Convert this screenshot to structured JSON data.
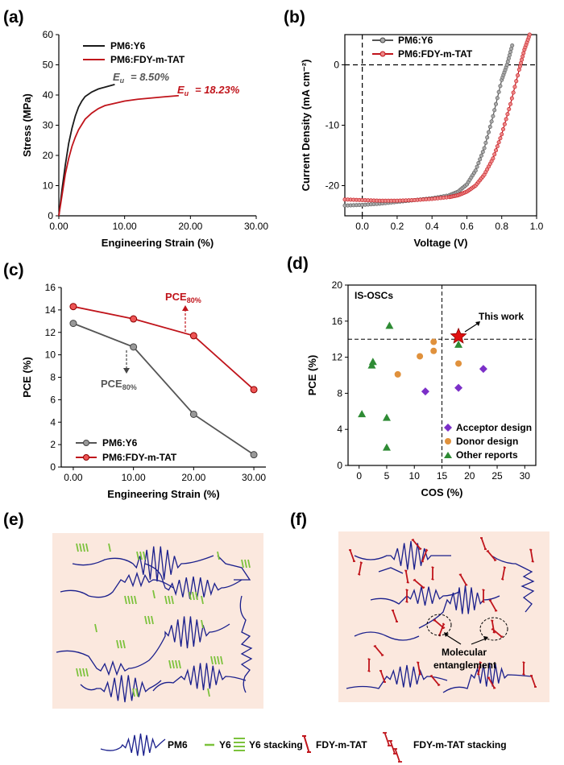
{
  "colors": {
    "black_series": "#1a1a1a",
    "red_series": "#c0141b",
    "gray_series": "#555555",
    "orange": "#e0913c",
    "purple": "#7b2fc8",
    "green": "#2e8b34",
    "chain_blue": "#1a1f8c",
    "y6_green": "#7cc23c",
    "panel_bg": "#fbe8de"
  },
  "chart_data": [
    {
      "panel": "(a)",
      "type": "line",
      "xlabel": "Engineering Strain (%)",
      "ylabel": "Stress (MPa)",
      "xlim": [
        0,
        30
      ],
      "ylim": [
        0,
        60
      ],
      "xticks": [
        "0.00",
        "10.00",
        "20.00",
        "30.00"
      ],
      "yticks": [
        "0",
        "10",
        "20",
        "30",
        "40",
        "50",
        "60"
      ],
      "series": [
        {
          "name": "PM6:Y6",
          "x": [
            0,
            0.5,
            1,
            1.5,
            2,
            2.5,
            3,
            3.5,
            4,
            5,
            6,
            7,
            7.5,
            8.0,
            8.5
          ],
          "y": [
            0,
            9,
            17,
            24,
            29,
            33,
            36,
            38,
            39.5,
            41,
            42,
            42.6,
            42.9,
            43.2,
            43.5
          ]
        },
        {
          "name": "PM6:FDY-m-TAT",
          "x": [
            0,
            0.5,
            1,
            1.5,
            2,
            2.5,
            3,
            4,
            5,
            6,
            7,
            8,
            9,
            10,
            12,
            14,
            16,
            18.23
          ],
          "y": [
            0,
            7,
            14,
            19,
            23,
            26,
            28.5,
            32,
            34,
            35.5,
            36.5,
            37,
            37.5,
            38,
            38.6,
            39,
            39.4,
            39.8
          ]
        }
      ],
      "annotations": [
        {
          "text": "8.50%",
          "prefix": "E",
          "sub": "u"
        },
        {
          "text": "18.23%",
          "prefix": "E",
          "sub": "u"
        }
      ]
    },
    {
      "panel": "(b)",
      "type": "line",
      "xlabel": "Voltage (V)",
      "ylabel": "Current Density (mA cm⁻²)",
      "xlim": [
        -0.1,
        1.0
      ],
      "ylim": [
        -25,
        5
      ],
      "xticks": [
        "0.0",
        "0.2",
        "0.4",
        "0.6",
        "0.8",
        "1.0"
      ],
      "yticks": [
        "-20",
        "-10",
        "0"
      ],
      "series": [
        {
          "name": "PM6:Y6",
          "x": [
            -0.1,
            0,
            0.1,
            0.2,
            0.3,
            0.4,
            0.5,
            0.55,
            0.6,
            0.65,
            0.7,
            0.75,
            0.8,
            0.83,
            0.86
          ],
          "y": [
            -23.3,
            -23.2,
            -23.0,
            -22.7,
            -22.4,
            -22.1,
            -21.6,
            -21.0,
            -19.8,
            -17.5,
            -13.8,
            -8.5,
            -2.5,
            0,
            3.2
          ]
        },
        {
          "name": "PM6:FDY-m-TAT",
          "x": [
            -0.1,
            0,
            0.1,
            0.2,
            0.3,
            0.4,
            0.5,
            0.55,
            0.6,
            0.65,
            0.7,
            0.75,
            0.8,
            0.85,
            0.9,
            0.93,
            0.96
          ],
          "y": [
            -22.3,
            -22.4,
            -22.5,
            -22.5,
            -22.4,
            -22.2,
            -21.9,
            -21.6,
            -21.0,
            -20.0,
            -18.2,
            -15.5,
            -11.5,
            -6.5,
            -0.8,
            2.5,
            5
          ]
        }
      ]
    },
    {
      "panel": "(c)",
      "type": "line",
      "xlabel": "Engineering Strain (%)",
      "ylabel": "PCE (%)",
      "xlim": [
        -2,
        32
      ],
      "ylim": [
        0,
        16
      ],
      "xticks": [
        "0.00",
        "10.00",
        "20.00",
        "30.00"
      ],
      "yticks": [
        "0",
        "2",
        "4",
        "6",
        "8",
        "10",
        "12",
        "14",
        "16"
      ],
      "series": [
        {
          "name": "PM6:Y6",
          "x": [
            0,
            10,
            20,
            30
          ],
          "y": [
            12.8,
            10.7,
            4.7,
            1.1
          ]
        },
        {
          "name": "PM6:FDY-m-TAT",
          "x": [
            0,
            10,
            20,
            30
          ],
          "y": [
            14.3,
            13.2,
            11.7,
            6.9
          ]
        }
      ],
      "annotations": [
        {
          "text": "PCE",
          "sub": "80%"
        },
        {
          "text": "PCE",
          "sub": "80%"
        }
      ]
    },
    {
      "panel": "(d)",
      "type": "scatter",
      "xlabel": "COS (%)",
      "ylabel": "PCE (%)",
      "xlim": [
        -2,
        32
      ],
      "ylim": [
        0,
        20
      ],
      "xticks": [
        "0",
        "5",
        "10",
        "15",
        "20",
        "25",
        "30"
      ],
      "yticks": [
        "0",
        "4",
        "8",
        "12",
        "16",
        "20"
      ],
      "label": "IS-OSCs",
      "highlight": {
        "text": "This work",
        "x": 18,
        "y": 14.3
      },
      "series": [
        {
          "name": "Acceptor design",
          "marker": "diamond",
          "x": [
            12,
            18,
            22.5
          ],
          "y": [
            8.2,
            8.6,
            10.7
          ]
        },
        {
          "name": "Donor design",
          "marker": "circle",
          "x": [
            7,
            11,
            13.5,
            13.5,
            18
          ],
          "y": [
            10.1,
            12.1,
            13.7,
            12.7,
            11.3
          ]
        },
        {
          "name": "Other reports",
          "marker": "triangle",
          "x": [
            0.5,
            2.3,
            2.5,
            5,
            5,
            5.5,
            18
          ],
          "y": [
            5.7,
            11.1,
            11.5,
            5.3,
            2.0,
            15.5,
            13.4
          ]
        }
      ]
    }
  ],
  "panels": {
    "a": "(a)",
    "b": "(b)",
    "c": "(c)",
    "d": "(d)",
    "e": "(e)",
    "f": "(f)"
  },
  "legend_a": {
    "s1": "PM6:Y6",
    "s2": "PM6:FDY-m-TAT",
    "ann1": "= 8.50%",
    "ann2": "= 18.23%"
  },
  "legend_b": {
    "s1": "PM6:Y6",
    "s2": "PM6:FDY-m-TAT"
  },
  "legend_c": {
    "s1": "PM6:Y6",
    "s2": "PM6:FDY-m-TAT",
    "pce": "PCE",
    "sub": "80%"
  },
  "legend_d": {
    "box": "IS-OSCs",
    "this_work": "This work",
    "s1": "Acceptor design",
    "s2": "Donor design",
    "s3": "Other reports"
  },
  "panel_f": {
    "label_line1": "Molecular",
    "label_line2": "entanglement"
  },
  "bottom_legend": {
    "pm6": "PM6",
    "y6": "Y6",
    "y6s": "Y6 stacking",
    "fdy": "FDY-m-TAT",
    "fdys": "FDY-m-TAT stacking"
  }
}
